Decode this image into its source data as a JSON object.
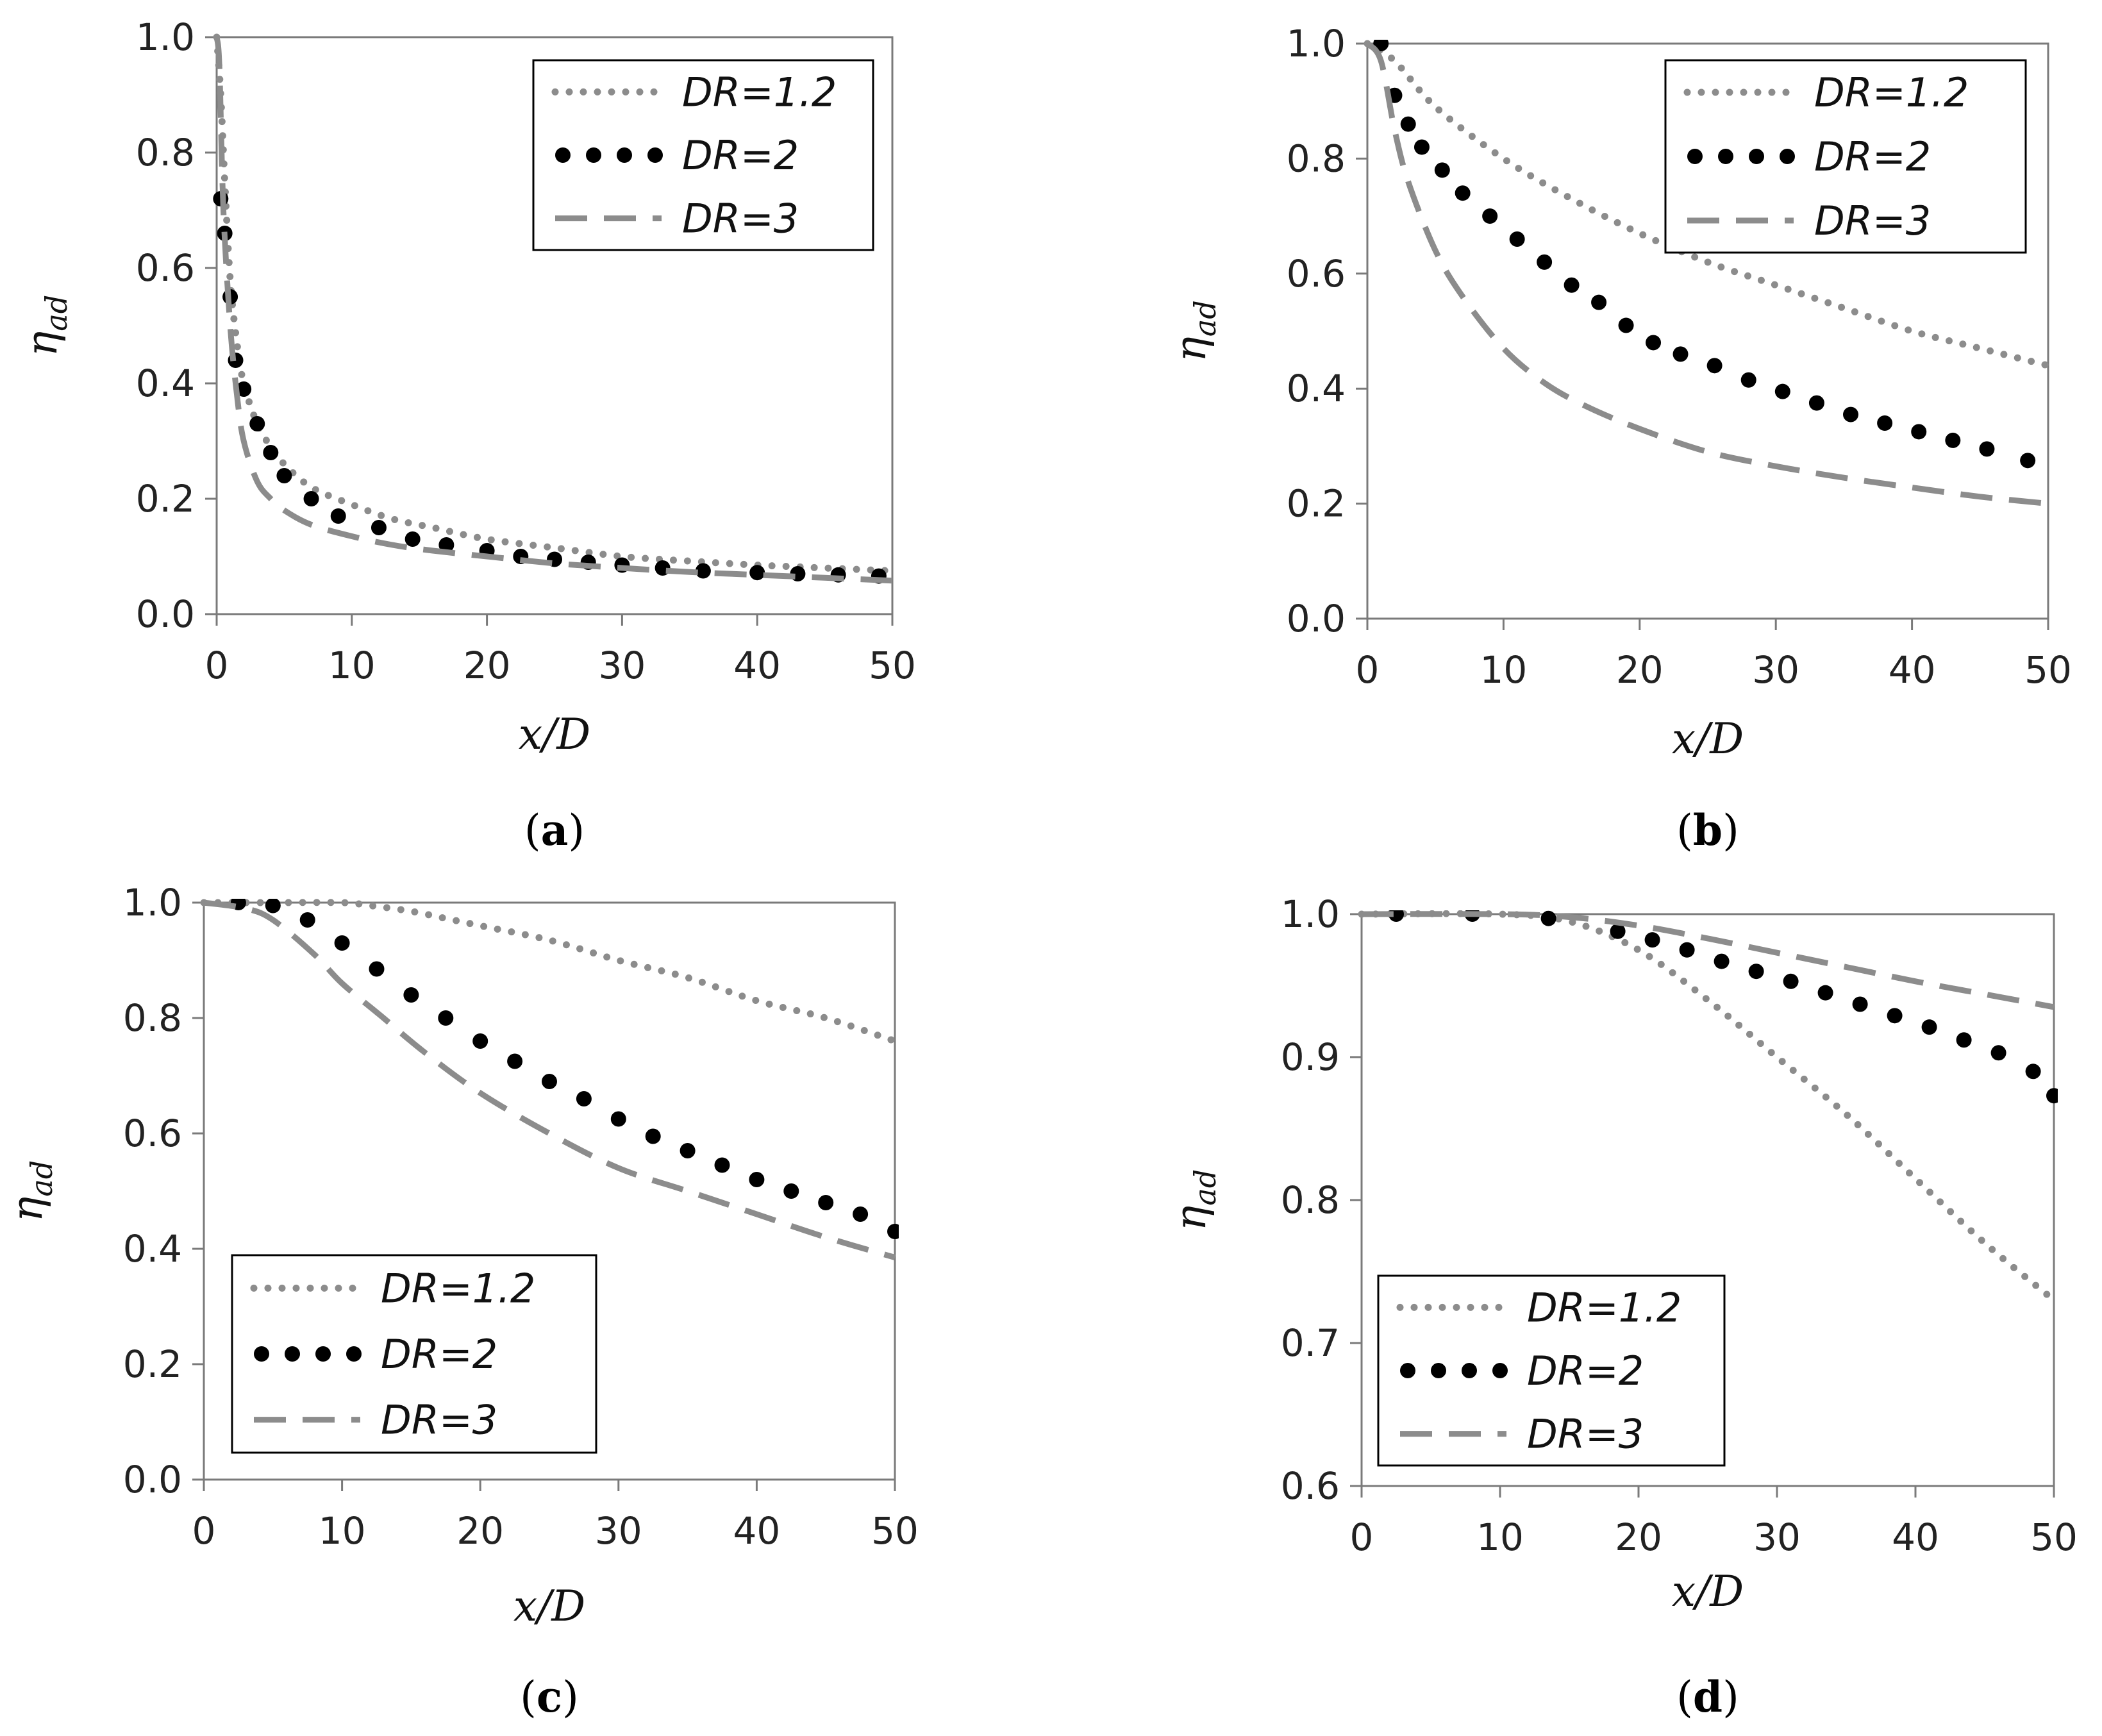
{
  "chart_data": [
    {
      "type": "line",
      "caption_letter": "a",
      "caption_open": "(",
      "caption_close": ")",
      "xlabel": "x/D",
      "ylabel": "η",
      "ylabel_sub": "ad",
      "xlim": [
        0,
        50
      ],
      "ylim": [
        0.0,
        1.0
      ],
      "xticks": [
        0,
        10,
        20,
        30,
        40,
        50
      ],
      "xtick_labels": [
        "0",
        "10",
        "20",
        "30",
        "40",
        "50"
      ],
      "yticks": [
        0.0,
        0.2,
        0.4,
        0.6,
        0.8,
        1.0
      ],
      "ytick_labels": [
        "0.0",
        "0.2",
        "0.4",
        "0.6",
        "0.8",
        "1.0"
      ],
      "legend_position": "top-right",
      "series": [
        {
          "name": "DR=1.2",
          "style": "dotted",
          "color": "#8c8c8c",
          "x": [
            0,
            0.3,
            0.6,
            1,
            1.5,
            2,
            3,
            4,
            5,
            7,
            10,
            13,
            16,
            20,
            25,
            30,
            35,
            40,
            45,
            50
          ],
          "y": [
            1.0,
            0.9,
            0.75,
            0.58,
            0.47,
            0.4,
            0.33,
            0.29,
            0.26,
            0.22,
            0.19,
            0.165,
            0.15,
            0.13,
            0.115,
            0.1,
            0.092,
            0.085,
            0.08,
            0.075
          ]
        },
        {
          "name": "DR=2",
          "style": "dots",
          "color": "#000000",
          "x": [
            0.3,
            0.6,
            1,
            1.4,
            2,
            3,
            4,
            5,
            7,
            9,
            12,
            14.5,
            17,
            20,
            22.5,
            25,
            27.5,
            30,
            33,
            36,
            40,
            43,
            46,
            49
          ],
          "y": [
            0.72,
            0.66,
            0.55,
            0.44,
            0.39,
            0.33,
            0.28,
            0.24,
            0.2,
            0.17,
            0.15,
            0.13,
            0.12,
            0.11,
            0.1,
            0.095,
            0.09,
            0.085,
            0.08,
            0.075,
            0.072,
            0.07,
            0.068,
            0.066
          ]
        },
        {
          "name": "DR=3",
          "style": "dashed",
          "color": "#8c8c8c",
          "x": [
            0,
            0.2,
            0.5,
            1,
            1.5,
            2,
            3,
            4,
            5,
            7,
            10,
            13,
            16,
            20,
            25,
            30,
            35,
            40,
            45,
            50
          ],
          "y": [
            1.0,
            0.95,
            0.7,
            0.5,
            0.38,
            0.3,
            0.23,
            0.2,
            0.18,
            0.155,
            0.135,
            0.12,
            0.11,
            0.1,
            0.088,
            0.08,
            0.073,
            0.068,
            0.063,
            0.058
          ]
        }
      ]
    },
    {
      "type": "line",
      "caption_letter": "b",
      "caption_open": "(",
      "caption_close": ")",
      "xlabel": "x/D",
      "ylabel": "η",
      "ylabel_sub": "ad",
      "xlim": [
        0,
        50
      ],
      "ylim": [
        0.0,
        1.0
      ],
      "xticks": [
        0,
        10,
        20,
        30,
        40,
        50
      ],
      "xtick_labels": [
        "0",
        "10",
        "20",
        "30",
        "40",
        "50"
      ],
      "yticks": [
        0.0,
        0.2,
        0.4,
        0.6,
        0.8,
        1.0
      ],
      "ytick_labels": [
        "0.0",
        "0.2",
        "0.4",
        "0.6",
        "0.8",
        "1.0"
      ],
      "legend_position": "top-right",
      "series": [
        {
          "name": "DR=1.2",
          "style": "dotted",
          "color": "#8c8c8c",
          "x": [
            0,
            2,
            5,
            10,
            15,
            20,
            25,
            30,
            35,
            40,
            45,
            50
          ],
          "y": [
            1.0,
            0.97,
            0.89,
            0.8,
            0.73,
            0.67,
            0.62,
            0.58,
            0.54,
            0.5,
            0.47,
            0.44
          ]
        },
        {
          "name": "DR=2",
          "style": "dots",
          "color": "#000000",
          "x": [
            1,
            2,
            3,
            4,
            5.5,
            7,
            9,
            11,
            13,
            15,
            17,
            19,
            21,
            23,
            25.5,
            28,
            30.5,
            33,
            35.5,
            38,
            40.5,
            43,
            45.5,
            48.5
          ],
          "y": [
            1.0,
            0.91,
            0.86,
            0.82,
            0.78,
            0.74,
            0.7,
            0.66,
            0.62,
            0.58,
            0.55,
            0.51,
            0.48,
            0.46,
            0.44,
            0.415,
            0.395,
            0.375,
            0.355,
            0.34,
            0.325,
            0.31,
            0.295,
            0.275
          ]
        },
        {
          "name": "DR=3",
          "style": "dashed",
          "color": "#8c8c8c",
          "x": [
            0,
            1,
            2,
            3,
            5,
            7,
            10,
            13,
            16,
            20,
            25,
            30,
            35,
            40,
            45,
            50
          ],
          "y": [
            1.0,
            0.97,
            0.85,
            0.76,
            0.64,
            0.56,
            0.47,
            0.41,
            0.37,
            0.33,
            0.29,
            0.265,
            0.245,
            0.228,
            0.212,
            0.2
          ]
        }
      ]
    },
    {
      "type": "line",
      "caption_letter": "c",
      "caption_open": "(",
      "caption_close": ")",
      "xlabel": "x/D",
      "ylabel": "η",
      "ylabel_sub": "ad",
      "xlim": [
        0,
        50
      ],
      "ylim": [
        0.0,
        1.0
      ],
      "xticks": [
        0,
        10,
        20,
        30,
        40,
        50
      ],
      "xtick_labels": [
        "0",
        "10",
        "20",
        "30",
        "40",
        "50"
      ],
      "yticks": [
        0.0,
        0.2,
        0.4,
        0.6,
        0.8,
        1.0
      ],
      "ytick_labels": [
        "0.0",
        "0.2",
        "0.4",
        "0.6",
        "0.8",
        "1.0"
      ],
      "legend_position": "bottom-left",
      "series": [
        {
          "name": "DR=1.2",
          "style": "dotted",
          "color": "#8c8c8c",
          "x": [
            0,
            5,
            10,
            12,
            15,
            18,
            20,
            25,
            30,
            35,
            40,
            45,
            50
          ],
          "y": [
            1.0,
            1.0,
            1.0,
            0.995,
            0.985,
            0.97,
            0.96,
            0.935,
            0.9,
            0.87,
            0.83,
            0.8,
            0.76
          ]
        },
        {
          "name": "DR=2",
          "style": "dots",
          "color": "#000000",
          "x": [
            2.5,
            5,
            7.5,
            10,
            12.5,
            15,
            17.5,
            20,
            22.5,
            25,
            27.5,
            30,
            32.5,
            35,
            37.5,
            40,
            42.5,
            45,
            47.5,
            50
          ],
          "y": [
            1.0,
            0.995,
            0.97,
            0.93,
            0.885,
            0.84,
            0.8,
            0.76,
            0.725,
            0.69,
            0.66,
            0.625,
            0.595,
            0.57,
            0.545,
            0.52,
            0.5,
            0.48,
            0.46,
            0.43
          ]
        },
        {
          "name": "DR=3",
          "style": "dashed",
          "color": "#8c8c8c",
          "x": [
            0,
            3,
            5,
            8,
            10,
            13,
            16,
            20,
            25,
            30,
            35,
            40,
            45,
            50
          ],
          "y": [
            1.0,
            0.99,
            0.97,
            0.91,
            0.86,
            0.8,
            0.74,
            0.67,
            0.6,
            0.54,
            0.5,
            0.46,
            0.42,
            0.385
          ]
        }
      ]
    },
    {
      "type": "line",
      "caption_letter": "d",
      "caption_open": "(",
      "caption_close": ")",
      "xlabel": "x/D",
      "ylabel": "η",
      "ylabel_sub": "ad",
      "xlim": [
        0,
        50
      ],
      "ylim": [
        0.6,
        1.0
      ],
      "xticks": [
        0,
        10,
        20,
        30,
        40,
        50
      ],
      "xtick_labels": [
        "0",
        "10",
        "20",
        "30",
        "40",
        "50"
      ],
      "yticks": [
        0.6,
        0.7,
        0.8,
        0.9,
        1.0
      ],
      "ytick_labels": [
        "0.6",
        "0.7",
        "0.8",
        "0.9",
        "1.0"
      ],
      "legend_position": "bottom-left",
      "series": [
        {
          "name": "DR=1.2",
          "style": "dotted",
          "color": "#8c8c8c",
          "x": [
            0,
            10,
            15,
            20,
            25,
            30,
            35,
            40,
            45,
            50
          ],
          "y": [
            1.0,
            1.0,
            0.995,
            0.975,
            0.94,
            0.9,
            0.86,
            0.815,
            0.77,
            0.73
          ]
        },
        {
          "name": "DR=2",
          "style": "dots",
          "color": "#000000",
          "x": [
            2.5,
            8,
            13.5,
            18.5,
            21,
            23.5,
            26,
            28.5,
            31,
            33.5,
            36,
            38.5,
            41,
            43.5,
            46,
            48.5,
            50
          ],
          "y": [
            1.0,
            1.0,
            0.997,
            0.988,
            0.982,
            0.975,
            0.967,
            0.96,
            0.953,
            0.945,
            0.937,
            0.929,
            0.921,
            0.912,
            0.903,
            0.89,
            0.873
          ]
        },
        {
          "name": "DR=3",
          "style": "dashed",
          "color": "#8c8c8c",
          "x": [
            0,
            10,
            15,
            20,
            25,
            30,
            35,
            40,
            45,
            50
          ],
          "y": [
            1.0,
            1.0,
            0.998,
            0.992,
            0.983,
            0.973,
            0.963,
            0.953,
            0.944,
            0.935
          ]
        }
      ]
    }
  ]
}
